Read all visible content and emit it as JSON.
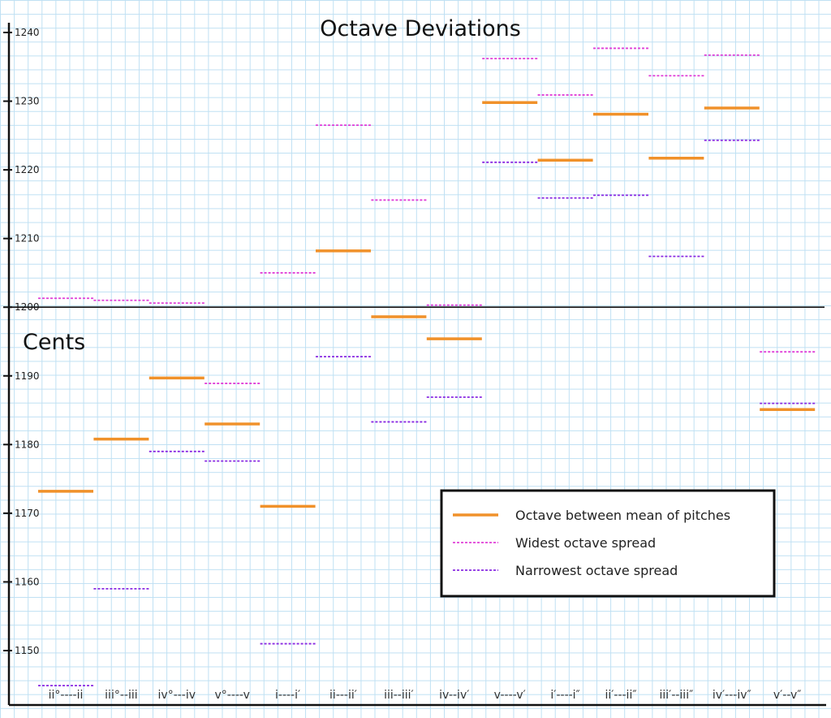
{
  "chart_data": {
    "type": "line",
    "title": "Octave Deviations",
    "ylabel": "Cents",
    "ylim": [
      1145,
      1240
    ],
    "yticks": [
      1150,
      1160,
      1170,
      1180,
      1190,
      1200,
      1210,
      1220,
      1230,
      1240
    ],
    "reference_line": 1200,
    "categories": [
      "ii°----ii",
      "iii°--iii",
      "iv°---iv",
      "v°----v",
      "i----i′",
      "ii---ii′",
      "iii--iii′",
      "iv--iv′",
      "v----v′",
      "i′----i″",
      "ii′---ii″",
      "iii′--iii″",
      "iv′---iv″",
      "v′--v″"
    ],
    "series": [
      {
        "name": "Octave between mean of pitches",
        "color": "#f0912a",
        "style": "solid",
        "values": [
          1173.2,
          1180.8,
          1189.7,
          1183.0,
          1171.0,
          1208.2,
          1198.6,
          1195.4,
          1229.8,
          1221.4,
          1228.1,
          1221.7,
          1229.0,
          1185.1
        ]
      },
      {
        "name": "Widest octave spread",
        "color": "#e040d8",
        "style": "dashed",
        "values": [
          1201.3,
          1201.0,
          1200.6,
          1188.9,
          1205.0,
          1226.5,
          1215.6,
          1200.3,
          1236.2,
          1230.9,
          1237.7,
          1233.7,
          1236.7,
          1193.5
        ]
      },
      {
        "name": "Narrowest octave spread",
        "color": "#8a2be2",
        "style": "dashed",
        "values": [
          1144.9,
          1159.0,
          1179.0,
          1177.6,
          1151.0,
          1192.8,
          1183.3,
          1186.9,
          1221.1,
          1215.9,
          1216.3,
          1207.4,
          1224.3,
          1186.0
        ]
      }
    ],
    "legend_position": "bottom-right",
    "grid": true
  }
}
